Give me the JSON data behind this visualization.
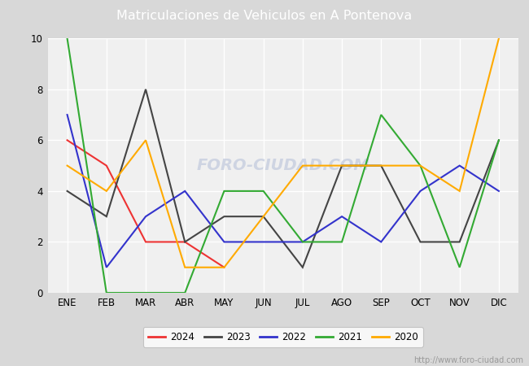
{
  "title": "Matriculaciones de Vehiculos en A Pontenova",
  "title_color": "#ffffff",
  "title_bg_color": "#4a7fd4",
  "months": [
    "ENE",
    "FEB",
    "MAR",
    "ABR",
    "MAY",
    "JUN",
    "JUL",
    "AGO",
    "SEP",
    "OCT",
    "NOV",
    "DIC"
  ],
  "series": {
    "2024": {
      "values": [
        6,
        5,
        2,
        2,
        1,
        null,
        null,
        null,
        null,
        null,
        null,
        null
      ],
      "color": "#ee3333",
      "label": "2024"
    },
    "2023": {
      "values": [
        4,
        3,
        8,
        2,
        3,
        3,
        1,
        5,
        5,
        2,
        2,
        6
      ],
      "color": "#444444",
      "label": "2023"
    },
    "2022": {
      "values": [
        7,
        1,
        3,
        4,
        2,
        2,
        2,
        3,
        2,
        4,
        5,
        4
      ],
      "color": "#3333cc",
      "label": "2022"
    },
    "2021": {
      "values": [
        10,
        0,
        0,
        0,
        4,
        4,
        2,
        2,
        7,
        5,
        1,
        6
      ],
      "color": "#33aa33",
      "label": "2021"
    },
    "2020": {
      "values": [
        5,
        4,
        6,
        1,
        1,
        3,
        5,
        5,
        5,
        5,
        4,
        10
      ],
      "color": "#ffaa00",
      "label": "2020"
    }
  },
  "ylim": [
    0,
    10
  ],
  "yticks": [
    0,
    2,
    4,
    6,
    8,
    10
  ],
  "outer_bg_color": "#d8d8d8",
  "plot_bg_color": "#f0f0f0",
  "grid_color": "#ffffff",
  "watermark_text": "foro-ciudad.com",
  "watermark_color": "#c8cfe0",
  "url": "http://www.foro-ciudad.com",
  "url_color": "#999999"
}
